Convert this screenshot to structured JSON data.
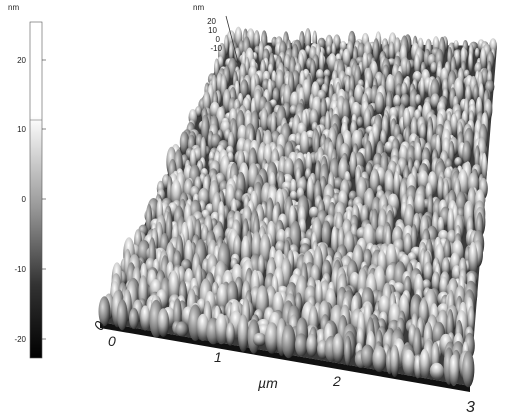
{
  "colorbar": {
    "unit": "nm",
    "ticks": [
      "20",
      "10",
      "0",
      "-10",
      "-20"
    ]
  },
  "surface": {
    "z_unit": "nm",
    "z_ticks": [
      "20",
      "10",
      "0",
      "-10"
    ],
    "y_ticks": [
      "0"
    ],
    "x_ticks": [
      "0",
      "1",
      "2",
      "3"
    ],
    "x_unit": "µm"
  }
}
